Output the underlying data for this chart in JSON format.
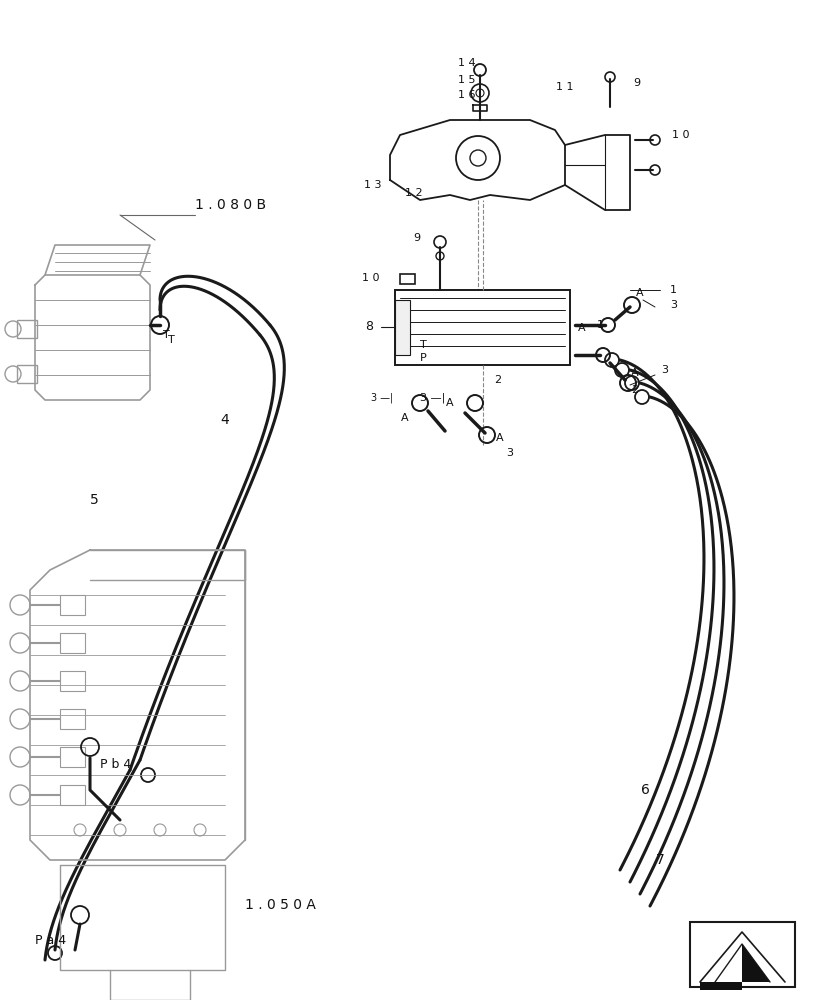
{
  "bg_color": "#ffffff",
  "lc": "#1a1a1a",
  "llc": "#999999",
  "tc": "#111111",
  "fig_width": 8.16,
  "fig_height": 10.0,
  "dpi": 100,
  "labels": {
    "ref_1080B": "1 . 0 8 0 B",
    "ref_1050A": "1 . 0 5 0 A",
    "ref_Pb4": "P b 4",
    "ref_Pa4": "P a 4",
    "ref_T": "T",
    "p14": "1 4",
    "p15": "1 5",
    "p16": "1 6",
    "p13": "1 3",
    "p12": "1 2",
    "p11": "1 1",
    "p10": "1 0",
    "p9": "9",
    "p9b": "9",
    "p10b": "1 0",
    "p8": "8",
    "p1": "1",
    "p2": "2",
    "p3": "3",
    "p4": "4",
    "p5": "5",
    "p6": "6",
    "p7": "7",
    "lA": "A",
    "lT": "T",
    "lP": "P"
  }
}
